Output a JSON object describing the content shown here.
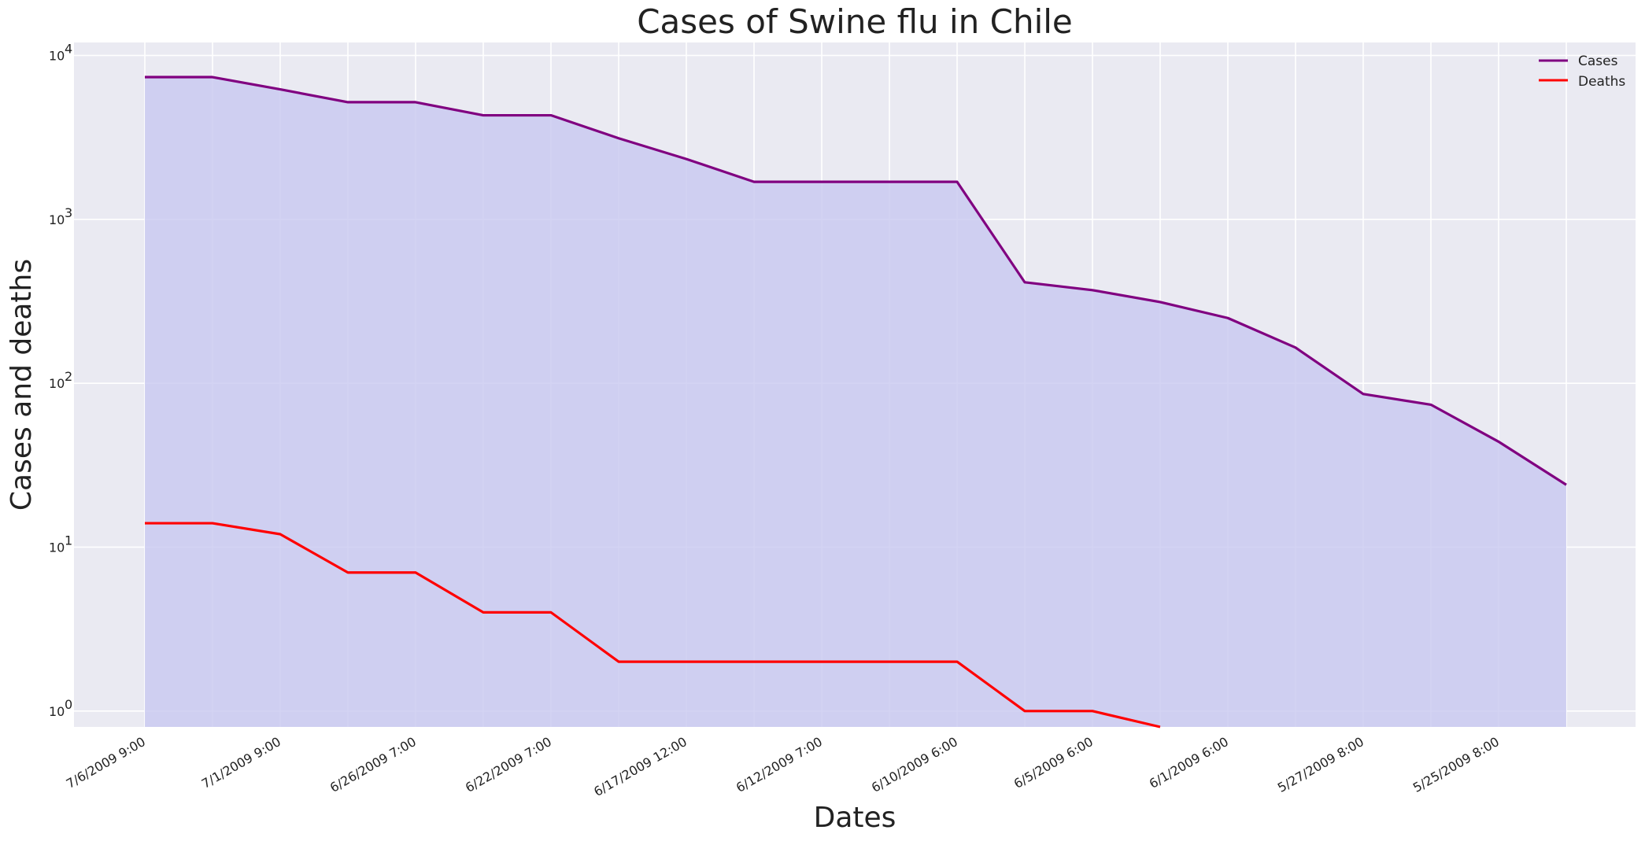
{
  "chart_data": {
    "type": "line",
    "title": "Cases of Swine flu in Chile",
    "xlabel": "Dates",
    "ylabel": "Cases and deaths",
    "yscale": "log",
    "ylim": [
      0.8,
      12000
    ],
    "grid": true,
    "legend_position": "top-right",
    "area_fill_under": "Cases",
    "x_tick_labels": [
      "7/6/2009 9:00",
      "7/1/2009 9:00",
      "6/26/2009 7:00",
      "6/22/2009 7:00",
      "6/17/2009 12:00",
      "6/12/2009 7:00",
      "6/10/2009 6:00",
      "6/5/2009 6:00",
      "6/1/2009 6:00",
      "5/27/2009 8:00",
      "5/25/2009 8:00"
    ],
    "y_tick_labels": [
      {
        "base": "10",
        "exp": "0"
      },
      {
        "base": "10",
        "exp": "1"
      },
      {
        "base": "10",
        "exp": "2"
      },
      {
        "base": "10",
        "exp": "3"
      },
      {
        "base": "10",
        "exp": "4"
      }
    ],
    "series": [
      {
        "name": "Cases",
        "color": "#800080",
        "values": [
          7376,
          7376,
          6211,
          5186,
          5186,
          4315,
          4315,
          3125,
          2335,
          1694,
          1694,
          1694,
          1694,
          413,
          370,
          313,
          250,
          165,
          86,
          74,
          44,
          24
        ]
      },
      {
        "name": "Deaths",
        "color": "#ff0000",
        "values": [
          14,
          14,
          12,
          7,
          7,
          4,
          4,
          2,
          2,
          2,
          2,
          2,
          2,
          1,
          1,
          0,
          0,
          0,
          0,
          0,
          0,
          0
        ]
      }
    ],
    "colors": {
      "fill": "#c8c8f0",
      "plot_background": "#eaeaf2",
      "grid": "#ffffff"
    }
  }
}
